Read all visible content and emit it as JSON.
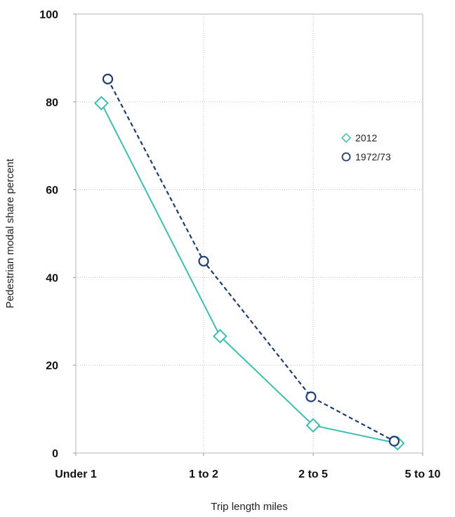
{
  "chart_data": {
    "type": "line",
    "title": "",
    "xlabel": "Trip length miles",
    "ylabel": "Pedestrian modal share percent",
    "categories": [
      "Under 1",
      "1 to 2",
      "2 to 5",
      "5 to 10"
    ],
    "ylim": [
      0,
      100
    ],
    "yticks": [
      "0",
      "20",
      "40",
      "60",
      "80",
      "100"
    ],
    "grid": true,
    "legend_position": "right",
    "series": [
      {
        "name": "2012",
        "marker": "diamond",
        "line_style": "solid",
        "color": "#3cbfb2",
        "x": [
          0.2,
          1.15,
          2.0,
          2.77
        ],
        "values": [
          79.7,
          26.6,
          6.3,
          2.2
        ]
      },
      {
        "name": "1972/73",
        "marker": "circle",
        "line_style": "dashed",
        "color": "#1f3d73",
        "x": [
          0.25,
          1.0,
          1.98,
          2.74
        ],
        "values": [
          85.2,
          43.7,
          12.8,
          2.7
        ]
      }
    ]
  }
}
